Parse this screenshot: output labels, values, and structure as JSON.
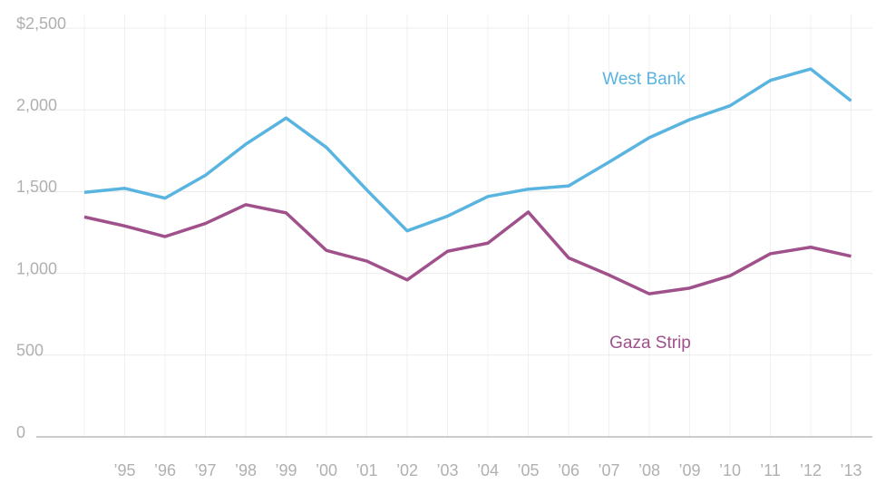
{
  "chart_data": {
    "type": "line",
    "categories": [
      null,
      "’95",
      "’96",
      "’97",
      "’98",
      "’99",
      "’00",
      "’01",
      "’02",
      "’03",
      "’04",
      "’05",
      "’06",
      "’07",
      "’08",
      "’09",
      "’10",
      "’11",
      "’12",
      "’13"
    ],
    "series": [
      {
        "name": "West Bank",
        "color": "#5ab4e0",
        "values": [
          1495,
          1520,
          1460,
          1600,
          1790,
          1950,
          1770,
          1510,
          1260,
          1350,
          1470,
          1515,
          1535,
          1680,
          1830,
          1940,
          2025,
          2180,
          2250,
          2055
        ]
      },
      {
        "name": "Gaza Strip",
        "color": "#a0508a",
        "values": [
          1345,
          1290,
          1225,
          1305,
          1420,
          1370,
          1140,
          1075,
          960,
          1135,
          1185,
          1375,
          1095,
          990,
          875,
          910,
          985,
          1120,
          1160,
          1105
        ]
      }
    ],
    "ylim": [
      0,
      2500
    ],
    "yticks": [
      0,
      500,
      {
        "value": 1000,
        "label": "1,000"
      },
      {
        "value": 1500,
        "label": "1,500"
      },
      {
        "value": 2000,
        "label": "2,000"
      },
      {
        "value": 2500,
        "label": "$2,500"
      }
    ],
    "grid": true
  }
}
